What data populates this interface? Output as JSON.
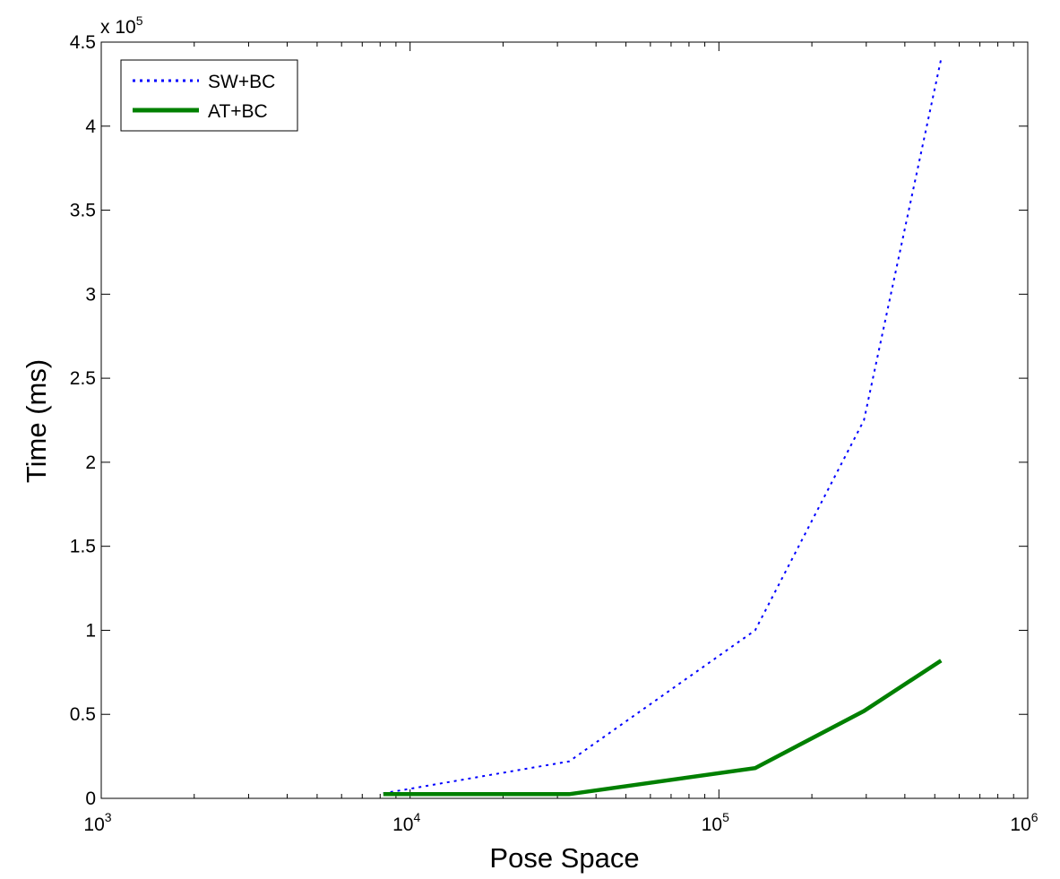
{
  "chart_data": {
    "type": "line",
    "title": "",
    "xlabel": "Pose Space",
    "ylabel": "Time (ms)",
    "x_scale": "log",
    "xlim": [
      1000,
      1000000
    ],
    "ylim": [
      0,
      450000
    ],
    "y_multiplier_label": "x 10",
    "y_multiplier_exponent": "5",
    "x_ticks": [
      {
        "base": "10",
        "exp": "3",
        "value": 1000
      },
      {
        "base": "10",
        "exp": "4",
        "value": 10000
      },
      {
        "base": "10",
        "exp": "5",
        "value": 100000
      },
      {
        "base": "10",
        "exp": "6",
        "value": 1000000
      }
    ],
    "y_ticks": [
      {
        "label": "0",
        "value": 0
      },
      {
        "label": "0.5",
        "value": 50000
      },
      {
        "label": "1",
        "value": 100000
      },
      {
        "label": "1.5",
        "value": 150000
      },
      {
        "label": "2",
        "value": 200000
      },
      {
        "label": "2.5",
        "value": 250000
      },
      {
        "label": "3",
        "value": 300000
      },
      {
        "label": "3.5",
        "value": 350000
      },
      {
        "label": "4",
        "value": 400000
      },
      {
        "label": "4.5",
        "value": 450000
      }
    ],
    "grid": false,
    "legend_position": "top-left",
    "series": [
      {
        "name": "SW+BC",
        "color": "#0000ff",
        "style": "dotted",
        "x": [
          8192,
          32768,
          131072,
          294912,
          524288
        ],
        "y": [
          3000,
          22000,
          100000,
          225000,
          440000
        ]
      },
      {
        "name": "AT+BC",
        "color": "#008000",
        "style": "solid",
        "x": [
          8192,
          32768,
          131072,
          294912,
          524288
        ],
        "y": [
          2500,
          2500,
          18000,
          52000,
          82000
        ]
      }
    ]
  }
}
